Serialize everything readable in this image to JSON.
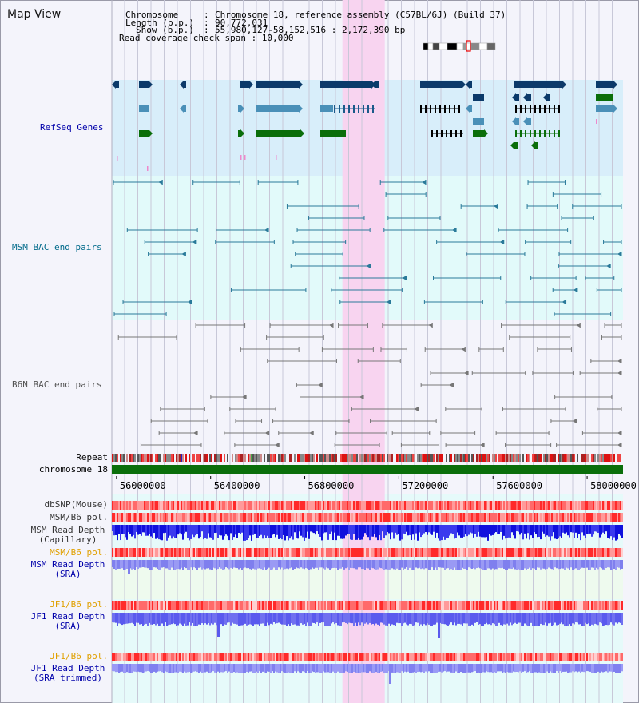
{
  "view": {
    "title": "Map View"
  },
  "info": {
    "chromosome_key": "Chromosome",
    "chromosome_val": "Chromosome 18, reference assembly (C57BL/6J) (Build 37)",
    "length_key": "Length (b.p.)",
    "length_val": "90,772,031",
    "show_key": "Show (b.p.)",
    "show_val": "55,980,127-58,152,516 : 2,172,390 bp",
    "coverage_label": "Read coverage check span : 10,000"
  },
  "tracks": {
    "refseq": "RefSeq Genes",
    "msm_bac": "MSM BAC end pairs",
    "b6n_bac": "B6N BAC end pairs",
    "repeat": "Repeat",
    "chromosome": "chromosome 18",
    "dbsnp": "dbSNP(Mouse)",
    "msm_b6_pol_1": "MSM/B6 pol.",
    "msm_depth_cap_1": "MSM Read Depth",
    "msm_depth_cap_2": "(Capillary)",
    "msm_b6_pol_2": "MSM/B6 pol.",
    "msm_depth_sra_1": "MSM Read Depth",
    "msm_depth_sra_2": "(SRA)",
    "jf1_pol_1": "JF1/B6 pol.",
    "jf1_depth_1": "JF1 Read Depth",
    "jf1_depth_2": "(SRA)",
    "jf1_pol_2": "JF1/B6 pol.",
    "jf1_trim_1": "JF1 Read Depth",
    "jf1_trim_2": "(SRA trimmed)"
  },
  "axis": {
    "ticks": [
      "56000000",
      "56400000",
      "56800000",
      "57200000",
      "57600000",
      "58000000"
    ],
    "range_start_bp": 55980127,
    "range_end_bp": 58152516,
    "highlight_start_bp": 56960000,
    "highlight_end_bp": 57140000
  },
  "colors": {
    "refseq_bg": "#d8eefa",
    "msm_bg": "#e2fafa",
    "b6n_bg": "#f4f4fb",
    "lower_bg": "#e6fafa",
    "highlight": "#f8d4f0",
    "gene_dark": "#0b3a6a",
    "gene_mid": "#4a90b8",
    "gene_green": "#0a6e0a",
    "msm_line": "#2a7a9a",
    "b6n_line": "#777777",
    "snp_red": "#ee2222",
    "depth_blue": "#2222dd",
    "depth_light": "#7f7fee",
    "label_blue": "#0000aa",
    "label_orange": "#e0a000",
    "label_teal": "#006a8a"
  }
}
